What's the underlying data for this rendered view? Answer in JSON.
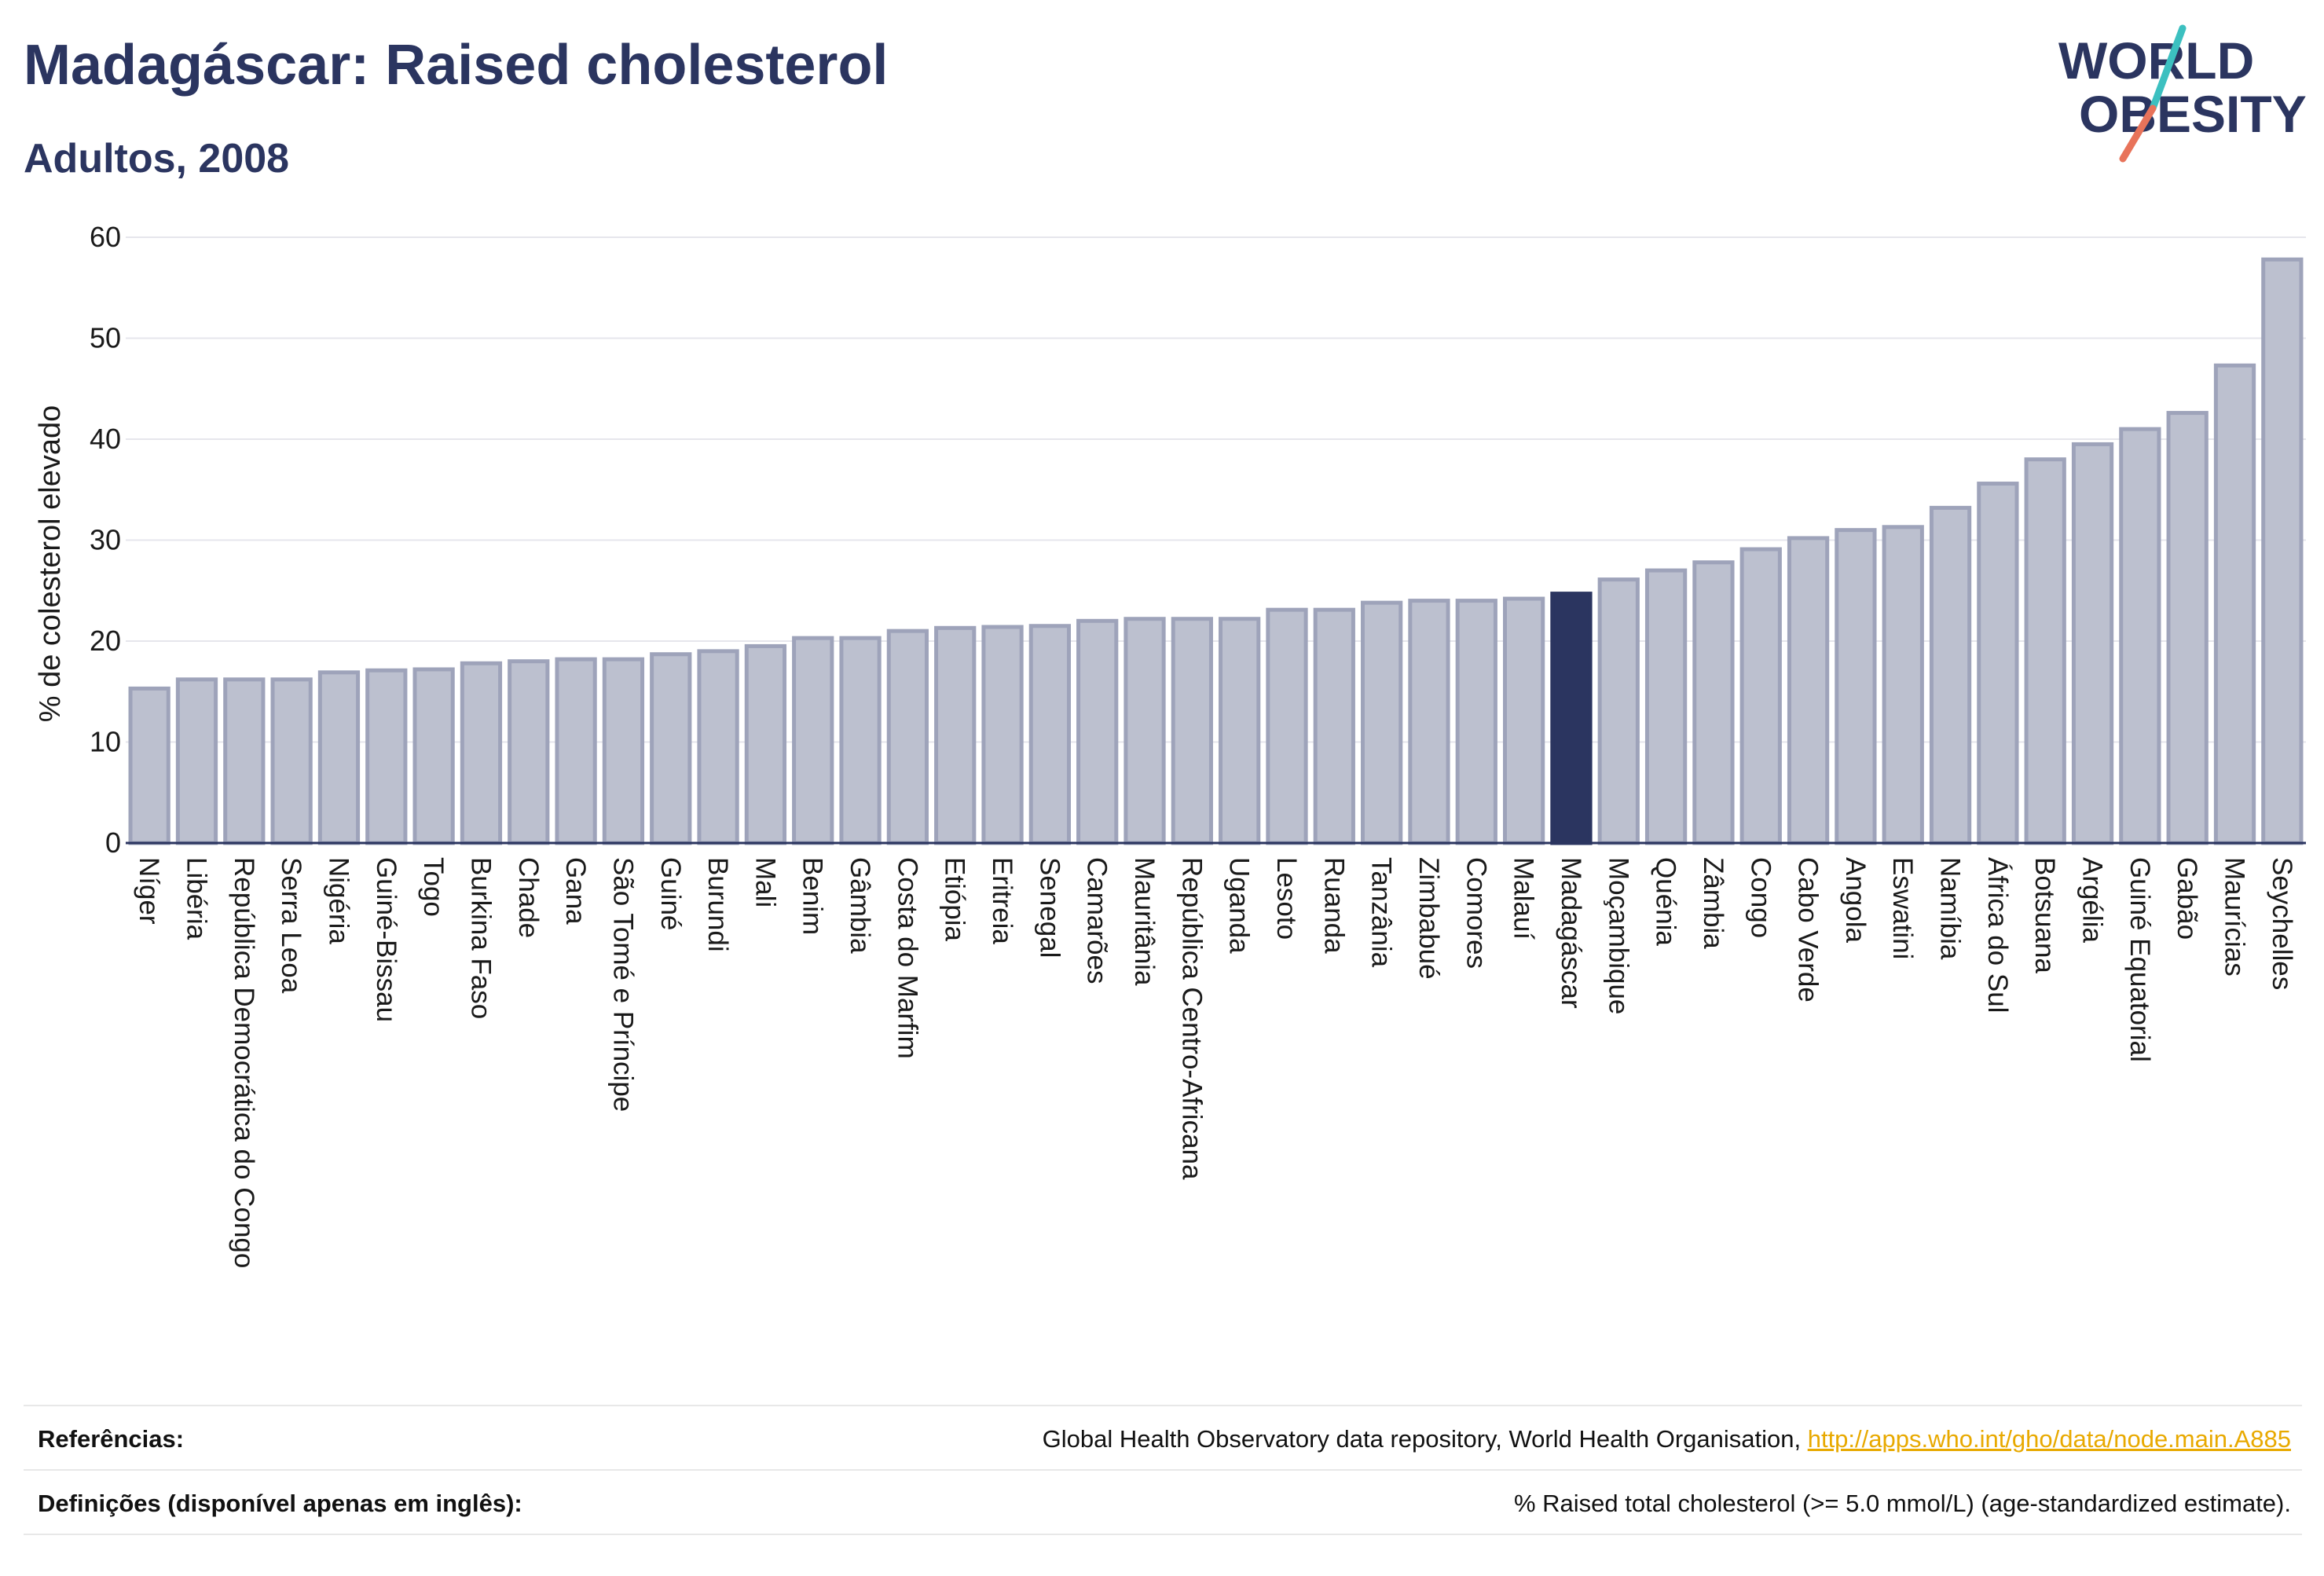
{
  "header": {
    "title": "Madagáscar: Raised cholesterol",
    "subtitle": "Adultos, 2008"
  },
  "logo": {
    "line1": "WORLD",
    "line2": "OBESITY",
    "text_color": "#2b3560",
    "slash_colors": [
      "#3cc0c0",
      "#e8735a"
    ]
  },
  "colors": {
    "bar_fill": "#bcc0cf",
    "bar_stroke": "#9ea3ba",
    "highlight_fill": "#2b3560",
    "grid": "#e6e6ec",
    "axis_line": "#2b3560"
  },
  "chart_data": {
    "type": "bar",
    "ylabel": "% de colesterol elevado",
    "ylim": [
      0,
      60
    ],
    "yticks": [
      0,
      10,
      20,
      30,
      40,
      50,
      60
    ],
    "grid": true,
    "highlight": "Madagáscar",
    "categories": [
      "Níger",
      "Libéria",
      "República Democrática do Congo",
      "Serra Leoa",
      "Nigéria",
      "Guiné-Bissau",
      "Togo",
      "Burkina Faso",
      "Chade",
      "Gana",
      "São Tomé e Príncipe",
      "Guiné",
      "Burundi",
      "Mali",
      "Benim",
      "Gâmbia",
      "Costa do Marfim",
      "Etiópia",
      "Eritreia",
      "Senegal",
      "Camarões",
      "Mauritânia",
      "República Centro-Africana",
      "Uganda",
      "Lesoto",
      "Ruanda",
      "Tanzânia",
      "Zimbabué",
      "Comores",
      "Malauí",
      "Madagáscar",
      "Moçambique",
      "Quénia",
      "Zâmbia",
      "Congo",
      "Cabo Verde",
      "Angola",
      "Eswatini",
      "Namíbia",
      "África do Sul",
      "Botsuana",
      "Argélia",
      "Guiné Equatorial",
      "Gabão",
      "Maurícias",
      "Seychelles"
    ],
    "values": [
      15.3,
      16.2,
      16.2,
      16.2,
      16.9,
      17.1,
      17.2,
      17.8,
      18.0,
      18.2,
      18.2,
      18.7,
      19.0,
      19.5,
      20.3,
      20.3,
      21.0,
      21.3,
      21.4,
      21.5,
      22.0,
      22.2,
      22.2,
      22.2,
      23.1,
      23.1,
      23.8,
      24.0,
      24.0,
      24.2,
      24.7,
      26.1,
      27.0,
      27.8,
      29.1,
      30.2,
      31.0,
      31.3,
      33.2,
      35.6,
      38.0,
      39.5,
      41.0,
      42.6,
      47.3,
      57.8
    ]
  },
  "footer": {
    "references_label": "Referências:",
    "references_text": "Global Health Observatory data repository, World Health Organisation,",
    "references_link": "http://apps.who.int/gho/data/node.main.A885",
    "definitions_label": "Definições (disponível apenas em inglês):",
    "definitions_text": "% Raised total cholesterol (>= 5.0 mmol/L) (age-standardized estimate)."
  }
}
